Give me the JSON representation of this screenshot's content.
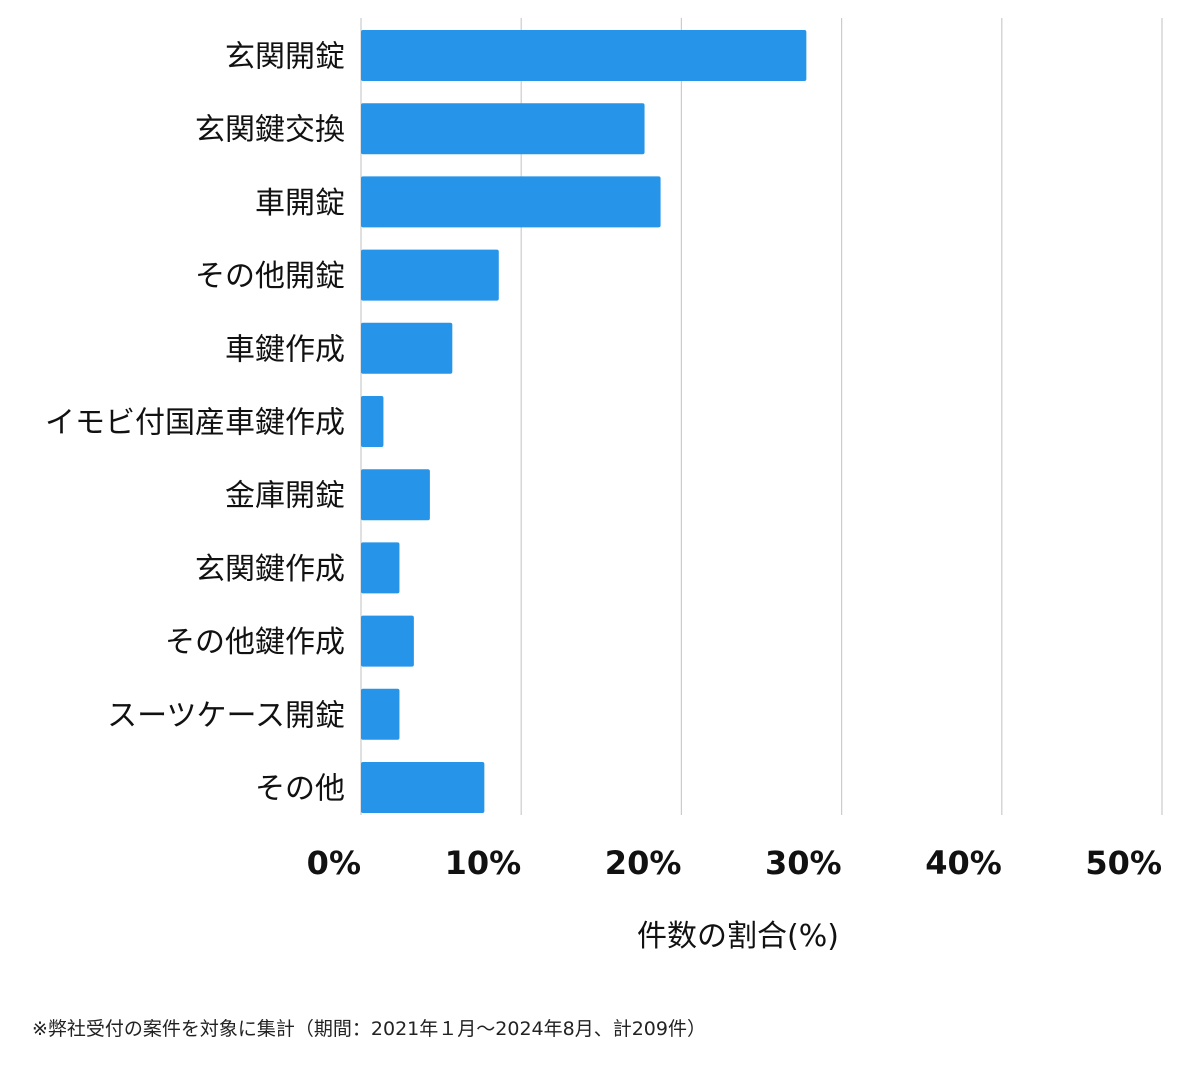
{
  "chart_data": {
    "type": "bar",
    "orientation": "horizontal",
    "categories": [
      "玄関開錠",
      "玄関鍵交換",
      "車開錠",
      "その他開錠",
      "車鍵作成",
      "イモビ付国産車鍵作成",
      "金庫開錠",
      "玄関鍵作成",
      "その他鍵作成",
      "スーツケース開錠",
      "その他"
    ],
    "values": [
      27.8,
      17.7,
      18.7,
      8.6,
      5.7,
      1.4,
      4.3,
      2.4,
      3.3,
      2.4,
      7.7
    ],
    "xlabel": "件数の割合(%)",
    "xlim": [
      0,
      50
    ],
    "xticks": [
      0,
      10,
      20,
      30,
      40,
      50
    ],
    "xtick_labels": [
      "0%",
      "10%",
      "20%",
      "30%",
      "40%",
      "50%"
    ],
    "grid": "vertical",
    "bar_color": "#2694e8",
    "grid_color": "#cccccc"
  },
  "footnote": "※弊社受付の案件を対象に集計（期間：2021年１月～2024年8月、計209件）"
}
